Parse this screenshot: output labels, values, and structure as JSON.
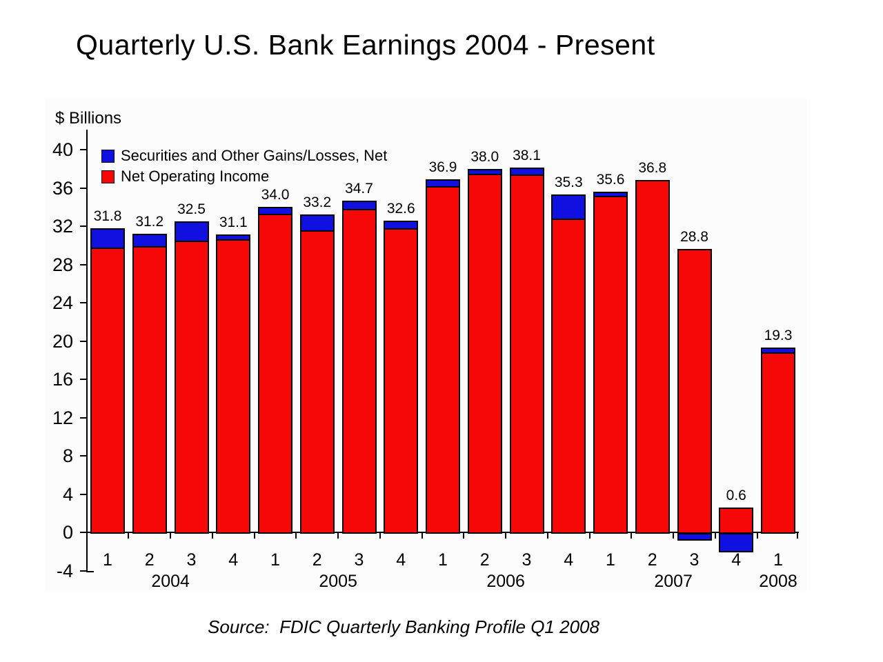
{
  "title": "Quarterly U.S. Bank Earnings 2004 - Present",
  "source": "Source:  FDIC Quarterly Banking Profile Q1 2008",
  "chart_data": {
    "type": "bar",
    "stacked": true,
    "title": "Quarterly U.S. Bank Earnings 2004 - Present",
    "ylabel": "$ Billions",
    "xlabel": "",
    "ylim": [
      -4,
      40
    ],
    "ytick_step": 4,
    "yticks": [
      40,
      36,
      32,
      28,
      24,
      20,
      16,
      12,
      8,
      4,
      0,
      -4
    ],
    "grid": false,
    "legend_position": "top-left-inside",
    "legend": [
      {
        "name": "Securities and Other Gains/Losses, Net",
        "color": "#1010E0"
      },
      {
        "name": "Net Operating Income",
        "color": "#F70808"
      }
    ],
    "years": [
      "2004",
      "2005",
      "2006",
      "2007",
      "2008"
    ],
    "bars": [
      {
        "year": "2004",
        "quarter": "1",
        "label": "31.8",
        "total": 31.8,
        "net_operating_income": 29.8,
        "securities_gains_losses": 2.0
      },
      {
        "year": "2004",
        "quarter": "2",
        "label": "31.2",
        "total": 31.2,
        "net_operating_income": 29.9,
        "securities_gains_losses": 1.3
      },
      {
        "year": "2004",
        "quarter": "3",
        "label": "32.5",
        "total": 32.5,
        "net_operating_income": 30.5,
        "securities_gains_losses": 2.0
      },
      {
        "year": "2004",
        "quarter": "4",
        "label": "31.1",
        "total": 31.1,
        "net_operating_income": 30.6,
        "securities_gains_losses": 0.5
      },
      {
        "year": "2005",
        "quarter": "1",
        "label": "34.0",
        "total": 34.0,
        "net_operating_income": 33.3,
        "securities_gains_losses": 0.7
      },
      {
        "year": "2005",
        "quarter": "2",
        "label": "33.2",
        "total": 33.2,
        "net_operating_income": 31.6,
        "securities_gains_losses": 1.6
      },
      {
        "year": "2005",
        "quarter": "3",
        "label": "34.7",
        "total": 34.7,
        "net_operating_income": 33.8,
        "securities_gains_losses": 0.9
      },
      {
        "year": "2005",
        "quarter": "4",
        "label": "32.6",
        "total": 32.6,
        "net_operating_income": 31.8,
        "securities_gains_losses": 0.8
      },
      {
        "year": "2006",
        "quarter": "1",
        "label": "36.9",
        "total": 36.9,
        "net_operating_income": 36.2,
        "securities_gains_losses": 0.7
      },
      {
        "year": "2006",
        "quarter": "2",
        "label": "38.0",
        "total": 38.0,
        "net_operating_income": 37.5,
        "securities_gains_losses": 0.5
      },
      {
        "year": "2006",
        "quarter": "3",
        "label": "38.1",
        "total": 38.1,
        "net_operating_income": 37.4,
        "securities_gains_losses": 0.7
      },
      {
        "year": "2006",
        "quarter": "4",
        "label": "35.3",
        "total": 35.3,
        "net_operating_income": 32.8,
        "securities_gains_losses": 2.5
      },
      {
        "year": "2007",
        "quarter": "1",
        "label": "35.6",
        "total": 35.6,
        "net_operating_income": 35.2,
        "securities_gains_losses": 0.4
      },
      {
        "year": "2007",
        "quarter": "2",
        "label": "36.8",
        "total": 36.8,
        "net_operating_income": 36.8,
        "securities_gains_losses": 0.0
      },
      {
        "year": "2007",
        "quarter": "3",
        "label": "28.8",
        "total": 28.8,
        "net_operating_income": 29.6,
        "securities_gains_losses": -0.8
      },
      {
        "year": "2007",
        "quarter": "4",
        "label": "0.6",
        "total": 0.6,
        "net_operating_income": 2.6,
        "securities_gains_losses": -2.0
      },
      {
        "year": "2008",
        "quarter": "1",
        "label": "19.3",
        "total": 19.3,
        "net_operating_income": 18.8,
        "securities_gains_losses": 0.5
      }
    ]
  },
  "colors": {
    "securities": "#1010E0",
    "net_operating_income": "#F70808",
    "axis": "#000000",
    "text": "#000000",
    "panel_background": "#fcfcfc"
  }
}
